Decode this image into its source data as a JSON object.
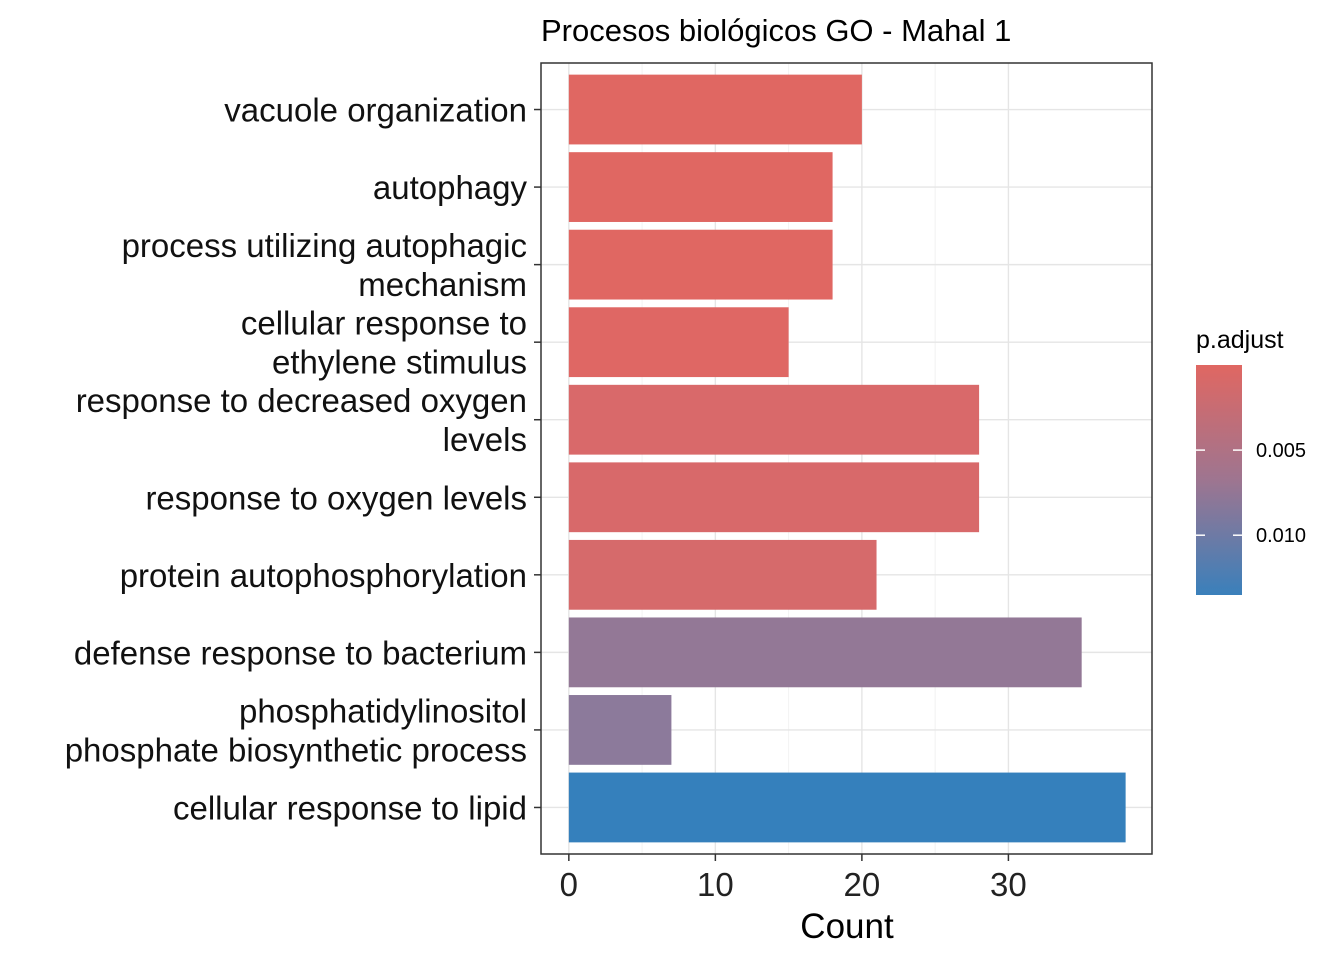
{
  "chart_data": {
    "type": "bar",
    "orientation": "horizontal",
    "title": "Procesos biológicos GO - Mahal 1",
    "xlabel": "Count",
    "ylabel": "",
    "xlim": [
      -1.9,
      39.8
    ],
    "xticks": [
      0,
      10,
      20,
      30
    ],
    "grid": true,
    "categories": [
      "vacuole organization",
      "autophagy",
      "process utilizing autophagic mechanism",
      "cellular response to ethylene stimulus",
      "response to decreased oxygen levels",
      "response to oxygen levels",
      "protein autophosphorylation",
      "defense response to bacterium",
      "phosphatidylinositol phosphate biosynthetic process",
      "cellular response to lipid"
    ],
    "category_label_lines": [
      [
        "vacuole organization"
      ],
      [
        "autophagy"
      ],
      [
        "process utilizing autophagic",
        "mechanism"
      ],
      [
        "cellular response to",
        "ethylene stimulus"
      ],
      [
        "response to decreased oxygen",
        "levels"
      ],
      [
        "response to oxygen levels"
      ],
      [
        "protein autophosphorylation"
      ],
      [
        "defense response to bacterium"
      ],
      [
        "phosphatidylinositol",
        "phosphate biosynthetic process"
      ],
      [
        "cellular response to lipid"
      ]
    ],
    "values": [
      20,
      18,
      18,
      15,
      28,
      28,
      21,
      35,
      7,
      38
    ],
    "bar_colors": [
      "#e06762",
      "#e06762",
      "#e06762",
      "#df6764",
      "#d9696a",
      "#d8696a",
      "#d66a6b",
      "#937896",
      "#8c7a9b",
      "#3580bc"
    ],
    "legend": {
      "title": "p.adjust",
      "placement": "right",
      "ticks": [
        "0.005",
        "0.010"
      ],
      "tick_fractions": [
        0.37,
        0.74
      ],
      "gradient_colors": [
        "#e06762",
        "#9e7590",
        "#3a80bb"
      ]
    }
  }
}
